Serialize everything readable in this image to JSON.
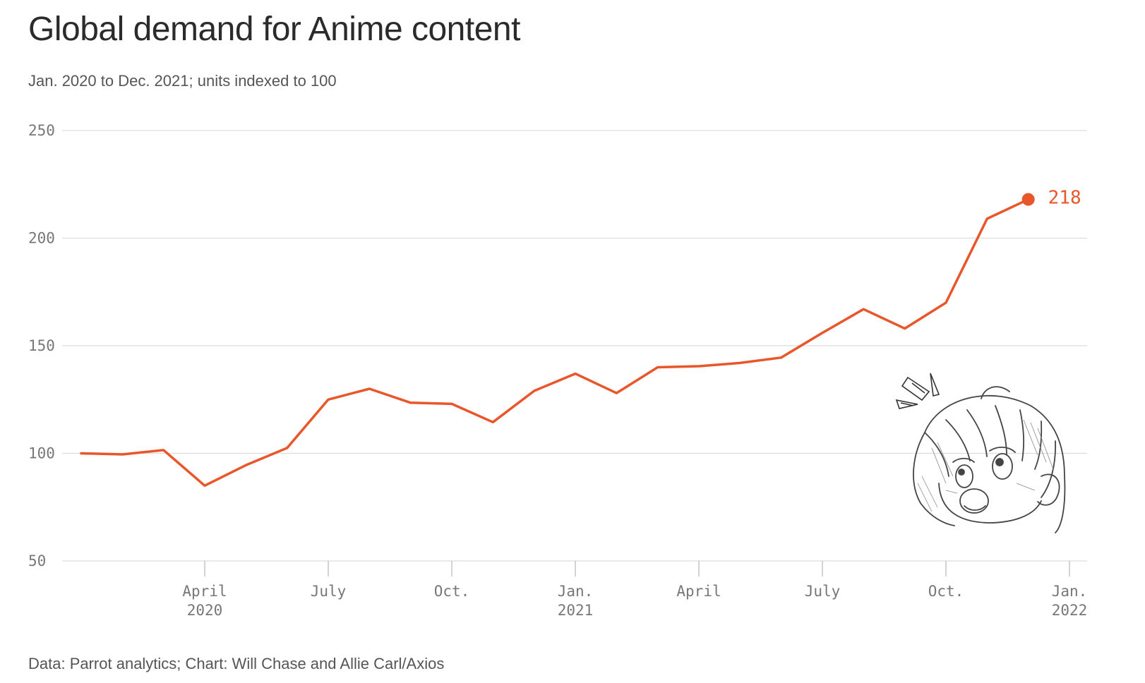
{
  "header": {
    "title": "Global demand for Anime content",
    "subtitle": "Jan. 2020 to Dec. 2021; units indexed to 100"
  },
  "footer": {
    "source": "Data: Parrot analytics; Chart: Will Chase and Allie Carl/Axios"
  },
  "colors": {
    "line": "#e8562a",
    "grid": "#dddddd",
    "text": "#2b2b2b"
  },
  "illustration": {
    "icon": "surprised-anime-girl-sketch"
  },
  "chart_data": {
    "type": "line",
    "title": "Global demand for Anime content",
    "subtitle": "Jan. 2020 to Dec. 2021; units indexed to 100",
    "xlabel": "",
    "ylabel": "",
    "ylim": [
      50,
      250
    ],
    "yticks": [
      250,
      200,
      150,
      100,
      50
    ],
    "grid": true,
    "x": [
      "2020-01",
      "2020-02",
      "2020-03",
      "2020-04",
      "2020-05",
      "2020-06",
      "2020-07",
      "2020-08",
      "2020-09",
      "2020-10",
      "2020-11",
      "2020-12",
      "2021-01",
      "2021-02",
      "2021-03",
      "2021-04",
      "2021-05",
      "2021-06",
      "2021-07",
      "2021-08",
      "2021-09",
      "2021-10",
      "2021-11",
      "2021-12"
    ],
    "series": [
      {
        "values": [
          100,
          99.5,
          101.5,
          85,
          94.5,
          102.5,
          125,
          130,
          123.5,
          123,
          114.5,
          129,
          137,
          128,
          140,
          140.5,
          142,
          144.5,
          156,
          167,
          158,
          170,
          209,
          218
        ]
      }
    ],
    "xticks": [
      {
        "date": "2020-04-01",
        "label": "April",
        "year": "2020"
      },
      {
        "date": "2020-07-01",
        "label": "July",
        "year": ""
      },
      {
        "date": "2020-10-01",
        "label": "Oct.",
        "year": ""
      },
      {
        "date": "2021-01-01",
        "label": "Jan.",
        "year": "2021"
      },
      {
        "date": "2021-04-01",
        "label": "April",
        "year": ""
      },
      {
        "date": "2021-07-01",
        "label": "July",
        "year": ""
      },
      {
        "date": "2021-10-01",
        "label": "Oct.",
        "year": ""
      },
      {
        "date": "2022-01-01",
        "label": "Jan.",
        "year": "2022"
      }
    ],
    "annotations": [
      {
        "x": "2021-12",
        "text": "218"
      }
    ]
  }
}
